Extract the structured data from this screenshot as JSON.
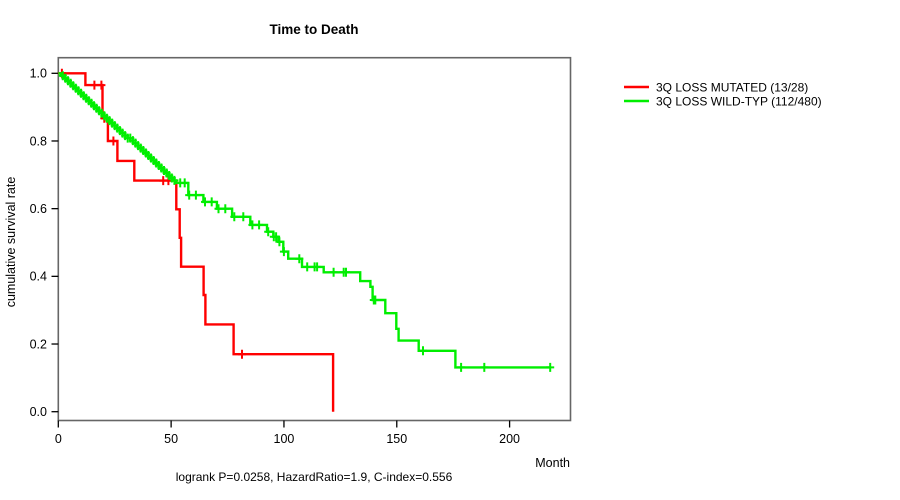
{
  "figure": {
    "background": "#ffffff"
  },
  "chart_data": {
    "type": "line",
    "subtype": "kaplan-meier-step",
    "title": "Time to Death",
    "xlabel": "Month",
    "ylabel": "cumulative survival rate",
    "footnote": "logrank P=0.0258, HazardRatio=1.9, C-index=0.556",
    "xlim": [
      0,
      227
    ],
    "ylim": [
      0.0,
      1.0
    ],
    "xticks": [
      0,
      50,
      100,
      150,
      200
    ],
    "yticks": [
      1.0,
      0.8,
      0.6,
      0.4,
      0.2,
      0.0
    ],
    "grid": false,
    "legend_position": "right-outside",
    "frame_color": "#666666",
    "axis_color": "#000000",
    "series": [
      {
        "name": "3Q LOSS MUTATED (13/28)",
        "color": "#ff0000",
        "steps": [
          [
            12,
            0.965
          ],
          [
            19.6,
            0.867
          ],
          [
            22,
            0.8
          ],
          [
            26.2,
            0.741
          ],
          [
            33.7,
            0.683
          ],
          [
            52.3,
            0.598
          ],
          [
            53.8,
            0.514
          ],
          [
            54.4,
            0.4285
          ],
          [
            64.4,
            0.345
          ],
          [
            65.2,
            0.258
          ],
          [
            77.7,
            0.17
          ],
          [
            121.8,
            0.0
          ]
        ],
        "end": 121.8,
        "censors": [
          1.6,
          16,
          19.1,
          20.4,
          24.4,
          46.5,
          48.8,
          81.4
        ]
      },
      {
        "name": "3Q LOSS WILD-TYP (112/480)",
        "color": "#00ee00",
        "dense": {
          "from_t": 0,
          "from_s": 1.0,
          "to_t": 52,
          "to_s": 0.676,
          "steps": 44,
          "censor_spacing": 1.15,
          "censor_start": 2.0
        },
        "steps": [
          [
            57.6,
            0.64
          ],
          [
            64.3,
            0.62
          ],
          [
            70.3,
            0.6
          ],
          [
            77,
            0.576
          ],
          [
            85.1,
            0.552
          ],
          [
            92.5,
            0.532
          ],
          [
            95.3,
            0.517
          ],
          [
            97.5,
            0.502
          ],
          [
            99.7,
            0.473
          ],
          [
            101.9,
            0.452
          ],
          [
            108,
            0.428
          ],
          [
            117.6,
            0.412
          ],
          [
            133.8,
            0.386
          ],
          [
            138.3,
            0.369
          ],
          [
            139.3,
            0.33
          ],
          [
            144.9,
            0.291
          ],
          [
            149.8,
            0.245
          ],
          [
            150.8,
            0.21
          ],
          [
            159.7,
            0.18
          ],
          [
            176,
            0.131
          ]
        ],
        "end": 218,
        "censors": [
          54,
          56,
          58,
          61,
          65,
          68,
          71,
          74,
          78,
          82,
          86,
          89,
          93,
          95.5,
          96.5,
          98,
          100,
          106.8,
          110.3,
          113.6,
          114.7,
          122,
          126.5,
          127.5,
          139.8,
          140.5,
          161.6,
          178.5,
          188.8,
          218
        ]
      }
    ]
  }
}
